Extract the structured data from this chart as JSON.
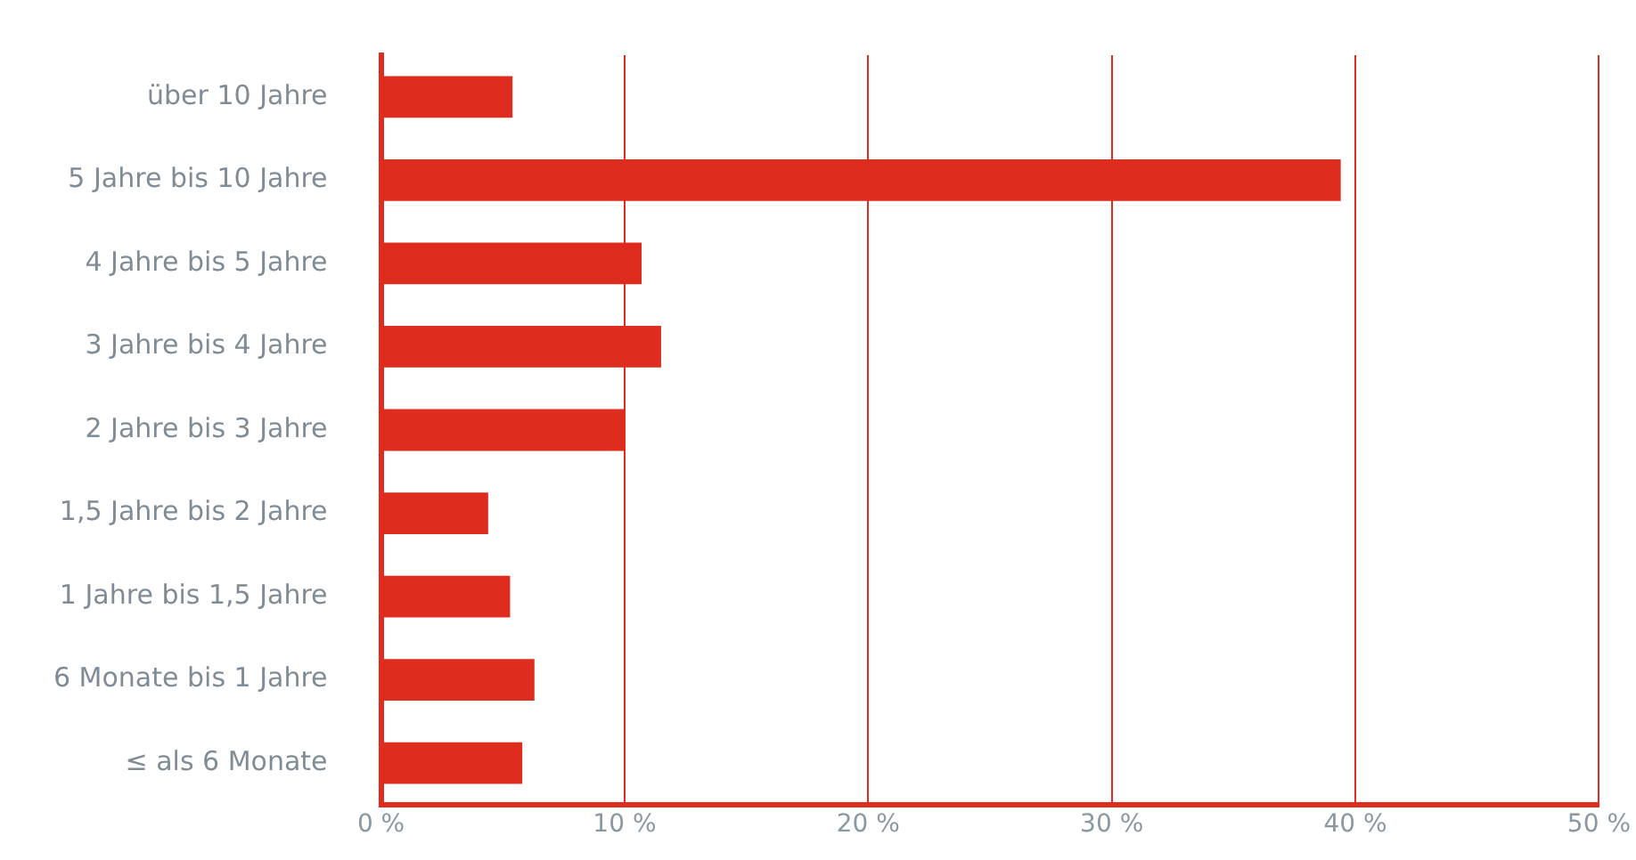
{
  "chart_data": {
    "type": "bar",
    "orientation": "horizontal",
    "categories": [
      "über 10 Jahre",
      "5 Jahre bis 10 Jahre",
      "4 Jahre bis 5 Jahre",
      "3 Jahre bis 4 Jahre",
      "2 Jahre bis 3 Jahre",
      "1,5 Jahre bis 2 Jahre",
      "1 Jahre bis 1,5 Jahre",
      "6 Monate bis 1 Jahre",
      "≤ als 6 Monate"
    ],
    "values": [
      5.4,
      39.4,
      10.7,
      11.5,
      10.0,
      4.4,
      5.3,
      6.3,
      5.8
    ],
    "color": "#de2d1e",
    "xlim": [
      0,
      50
    ],
    "xticks": [
      {
        "value": 0,
        "label": "0 %"
      },
      {
        "value": 10,
        "label": "10 %"
      },
      {
        "value": 20,
        "label": "20 %"
      },
      {
        "value": 30,
        "label": "30 %"
      },
      {
        "value": 40,
        "label": "40 %"
      },
      {
        "value": 50,
        "label": "50 %"
      }
    ],
    "grid": "x"
  }
}
